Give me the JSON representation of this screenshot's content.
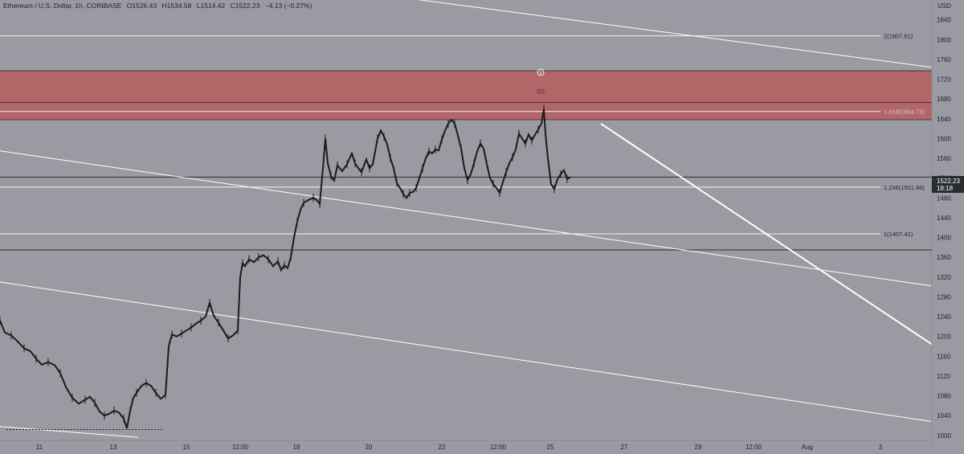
{
  "header": {
    "symbol": "Ethereum / U.S. Dollar, 1h, COINBASE",
    "open": "O1526.43",
    "high": "H1534.58",
    "low": "L1514.42",
    "close": "C1522.23",
    "change": "−4.13 (−0.27%)"
  },
  "chart_data": {
    "type": "line",
    "currency_label": "USD",
    "ylim": [
      990,
      1880
    ],
    "y_ticks": [
      1000,
      1040,
      1080,
      1120,
      1160,
      1200,
      1240,
      1280,
      1320,
      1360,
      1400,
      1440,
      1480,
      1520,
      1560,
      1600,
      1640,
      1680,
      1720,
      1760,
      1800,
      1840
    ],
    "x_ticks": [
      "11",
      "13",
      "15",
      "12:00",
      "18",
      "20",
      "22",
      "12:00",
      "25",
      "27",
      "29",
      "12:00",
      "Aug",
      "3"
    ],
    "last_price": {
      "value": 1522.23,
      "label": "1522.23",
      "countdown": "18:18"
    },
    "fib_levels": [
      {
        "label": "2(1807.61)",
        "value": 1807.61
      },
      {
        "label": "1.618(1654.73)",
        "value": 1654.73
      },
      {
        "label": "1.236(1501.86)",
        "value": 1501.86
      },
      {
        "label": "1(1407.41)",
        "value": 1407.41
      }
    ],
    "resistance_zone": {
      "from": 1638,
      "to": 1737,
      "mid": 1673,
      "color": "#b95454"
    },
    "horizontal_lines": [
      1522,
      1375
    ],
    "wave_labels": {
      "circle": "X",
      "sub": "(C)"
    },
    "price_path": [
      [
        0,
        1232
      ],
      [
        6,
        1208
      ],
      [
        14,
        1202
      ],
      [
        22,
        1190
      ],
      [
        30,
        1176
      ],
      [
        38,
        1170
      ],
      [
        45,
        1155
      ],
      [
        52,
        1143
      ],
      [
        60,
        1148
      ],
      [
        68,
        1142
      ],
      [
        75,
        1126
      ],
      [
        82,
        1098
      ],
      [
        90,
        1076
      ],
      [
        98,
        1064
      ],
      [
        106,
        1072
      ],
      [
        112,
        1078
      ],
      [
        118,
        1066
      ],
      [
        124,
        1048
      ],
      [
        130,
        1040
      ],
      [
        136,
        1044
      ],
      [
        142,
        1050
      ],
      [
        148,
        1046
      ],
      [
        154,
        1034
      ],
      [
        158,
        1014
      ],
      [
        162,
        1050
      ],
      [
        166,
        1076
      ],
      [
        170,
        1086
      ],
      [
        176,
        1100
      ],
      [
        182,
        1106
      ],
      [
        188,
        1100
      ],
      [
        194,
        1086
      ],
      [
        200,
        1074
      ],
      [
        206,
        1082
      ],
      [
        210,
        1180
      ],
      [
        214,
        1204
      ],
      [
        220,
        1200
      ],
      [
        226,
        1206
      ],
      [
        232,
        1212
      ],
      [
        238,
        1218
      ],
      [
        244,
        1226
      ],
      [
        250,
        1232
      ],
      [
        256,
        1240
      ],
      [
        261,
        1268
      ],
      [
        266,
        1242
      ],
      [
        272,
        1228
      ],
      [
        278,
        1212
      ],
      [
        284,
        1196
      ],
      [
        290,
        1202
      ],
      [
        296,
        1212
      ],
      [
        299,
        1320
      ],
      [
        302,
        1348
      ],
      [
        305,
        1342
      ],
      [
        310,
        1356
      ],
      [
        316,
        1350
      ],
      [
        322,
        1360
      ],
      [
        328,
        1364
      ],
      [
        334,
        1356
      ],
      [
        340,
        1342
      ],
      [
        346,
        1352
      ],
      [
        350,
        1334
      ],
      [
        354,
        1344
      ],
      [
        358,
        1338
      ],
      [
        362,
        1360
      ],
      [
        366,
        1400
      ],
      [
        370,
        1432
      ],
      [
        374,
        1456
      ],
      [
        378,
        1470
      ],
      [
        384,
        1476
      ],
      [
        390,
        1480
      ],
      [
        394,
        1476
      ],
      [
        398,
        1468
      ],
      [
        402,
        1540
      ],
      [
        405,
        1600
      ],
      [
        408,
        1550
      ],
      [
        412,
        1524
      ],
      [
        416,
        1515
      ],
      [
        420,
        1546
      ],
      [
        426,
        1534
      ],
      [
        432,
        1548
      ],
      [
        438,
        1570
      ],
      [
        442,
        1550
      ],
      [
        446,
        1540
      ],
      [
        450,
        1532
      ],
      [
        456,
        1558
      ],
      [
        460,
        1540
      ],
      [
        464,
        1548
      ],
      [
        470,
        1600
      ],
      [
        474,
        1616
      ],
      [
        478,
        1604
      ],
      [
        482,
        1588
      ],
      [
        486,
        1560
      ],
      [
        490,
        1540
      ],
      [
        494,
        1510
      ],
      [
        498,
        1500
      ],
      [
        502,
        1488
      ],
      [
        506,
        1480
      ],
      [
        510,
        1490
      ],
      [
        514,
        1492
      ],
      [
        518,
        1500
      ],
      [
        522,
        1520
      ],
      [
        526,
        1540
      ],
      [
        530,
        1560
      ],
      [
        534,
        1574
      ],
      [
        538,
        1570
      ],
      [
        542,
        1578
      ],
      [
        546,
        1576
      ],
      [
        550,
        1598
      ],
      [
        554,
        1616
      ],
      [
        558,
        1630
      ],
      [
        562,
        1638
      ],
      [
        566,
        1630
      ],
      [
        570,
        1606
      ],
      [
        574,
        1580
      ],
      [
        578,
        1540
      ],
      [
        582,
        1516
      ],
      [
        586,
        1528
      ],
      [
        590,
        1550
      ],
      [
        594,
        1574
      ],
      [
        598,
        1590
      ],
      [
        602,
        1580
      ],
      [
        606,
        1548
      ],
      [
        610,
        1520
      ],
      [
        614,
        1508
      ],
      [
        618,
        1500
      ],
      [
        622,
        1490
      ],
      [
        626,
        1512
      ],
      [
        630,
        1532
      ],
      [
        634,
        1550
      ],
      [
        638,
        1562
      ],
      [
        642,
        1578
      ],
      [
        646,
        1610
      ],
      [
        650,
        1600
      ],
      [
        654,
        1590
      ],
      [
        658,
        1608
      ],
      [
        662,
        1596
      ],
      [
        666,
        1608
      ],
      [
        670,
        1618
      ],
      [
        674,
        1630
      ],
      [
        677,
        1660
      ],
      [
        679,
        1610
      ],
      [
        682,
        1560
      ],
      [
        686,
        1508
      ],
      [
        690,
        1498
      ],
      [
        694,
        1518
      ],
      [
        698,
        1528
      ],
      [
        702,
        1536
      ],
      [
        706,
        1518
      ],
      [
        710,
        1522
      ]
    ],
    "trend_lines": [
      {
        "from": [
          0,
          1575
        ],
        "to": [
          1160,
          1302
        ]
      },
      {
        "from": [
          0,
          1310
        ],
        "to": [
          1160,
          1028
        ]
      },
      {
        "from": [
          0,
          1018
        ],
        "to": [
          172,
          996
        ]
      },
      {
        "from": [
          505,
          1884
        ],
        "to": [
          1160,
          1744
        ]
      },
      {
        "from": [
          748,
          1630
        ],
        "to": [
          1160,
          1184
        ]
      }
    ],
    "dotted_line": {
      "from": [
        8,
        1012
      ],
      "to": [
        202,
        1012
      ]
    }
  }
}
